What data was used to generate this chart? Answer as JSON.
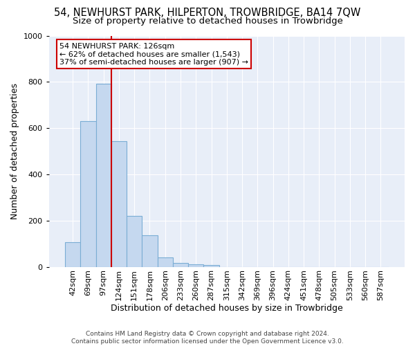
{
  "title": "54, NEWHURST PARK, HILPERTON, TROWBRIDGE, BA14 7QW",
  "subtitle": "Size of property relative to detached houses in Trowbridge",
  "xlabel": "Distribution of detached houses by size in Trowbridge",
  "ylabel": "Number of detached properties",
  "categories": [
    "42sqm",
    "69sqm",
    "97sqm",
    "124sqm",
    "151sqm",
    "178sqm",
    "206sqm",
    "233sqm",
    "260sqm",
    "287sqm",
    "315sqm",
    "342sqm",
    "369sqm",
    "396sqm",
    "424sqm",
    "451sqm",
    "478sqm",
    "505sqm",
    "533sqm",
    "560sqm",
    "587sqm"
  ],
  "values": [
    107,
    630,
    793,
    545,
    222,
    138,
    42,
    18,
    13,
    10,
    0,
    0,
    0,
    0,
    0,
    0,
    0,
    0,
    0,
    0,
    0
  ],
  "bar_color": "#c5d8ef",
  "bar_edge_color": "#7aadd4",
  "vline_color": "#cc0000",
  "annotation_lines": [
    "54 NEWHURST PARK: 126sqm",
    "← 62% of detached houses are smaller (1,543)",
    "37% of semi-detached houses are larger (907) →"
  ],
  "annotation_box_color": "#cc0000",
  "background_color": "#e8eef8",
  "grid_color": "#d0d8e8",
  "footer": "Contains HM Land Registry data © Crown copyright and database right 2024.\nContains public sector information licensed under the Open Government Licence v3.0.",
  "ylim": [
    0,
    1000
  ],
  "title_fontsize": 10.5,
  "subtitle_fontsize": 9.5,
  "ylabel_fontsize": 9,
  "xlabel_fontsize": 9,
  "tick_fontsize": 8,
  "footer_fontsize": 6.5,
  "annotation_fontsize": 8,
  "vline_x_index": 3.0
}
